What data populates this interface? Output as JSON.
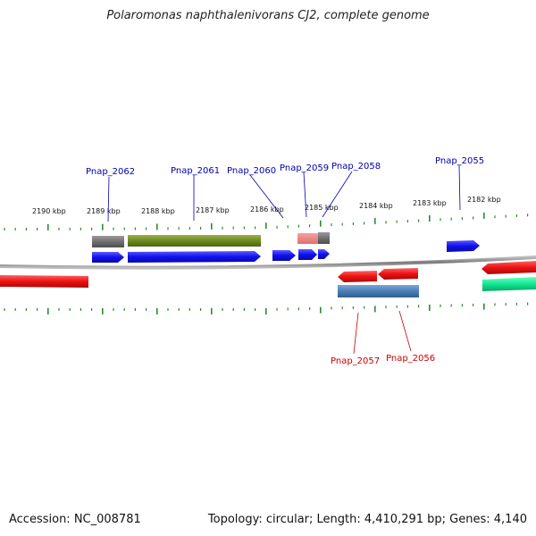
{
  "title": "Polaromonas naphthalenivorans CJ2, complete genome",
  "footer": {
    "accession": "Accession: NC_008781",
    "summary": "Topology: circular; Length: 4,410,291 bp; Genes: 4,140"
  },
  "colors": {
    "backbone": "#8a8a8a",
    "ticks": "#2e8b2e",
    "forward_cds": "#1010ee",
    "reverse_cds": "#ee1111",
    "forward_label": "#0000aa",
    "reverse_label": "#cc0000"
  },
  "tick_labels": [
    "2190 kbp",
    "2189 kbp",
    "2188 kbp",
    "2187 kbp",
    "2186 kbp",
    "2185 kbp",
    "2184 kbp",
    "2183 kbp",
    "2182 kbp"
  ],
  "gene_labels_forward": [
    "Pnap_2062",
    "Pnap_2061",
    "Pnap_2060",
    "Pnap_2059",
    "Pnap_2058",
    "Pnap_2055"
  ],
  "gene_labels_reverse": [
    "Pnap_2057",
    "Pnap_2056"
  ]
}
